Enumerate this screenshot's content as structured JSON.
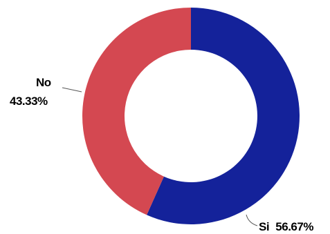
{
  "chart_data": {
    "type": "pie",
    "style": "donut",
    "title": "",
    "slices": [
      {
        "label": "Si",
        "value": 56.67,
        "percent_text": "56.67%",
        "color": "#14229A"
      },
      {
        "label": "No",
        "value": 43.33,
        "percent_text": "43.33%",
        "color": "#D44851"
      }
    ],
    "start_angle_deg": 0,
    "direction": "clockwise",
    "legend": "none"
  }
}
